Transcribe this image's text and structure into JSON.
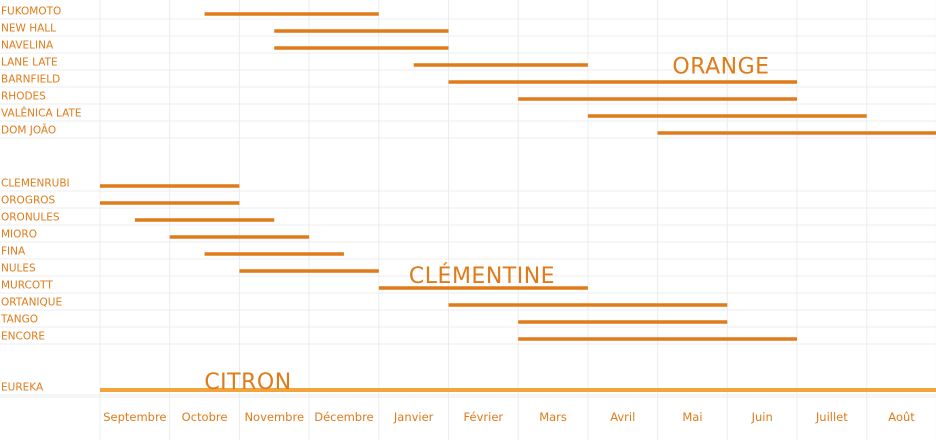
{
  "chart_data": {
    "type": "bar",
    "orientation": "horizontal-range",
    "months": [
      "Septembre",
      "Octobre",
      "Novembre",
      "Décembre",
      "Janvier",
      "Février",
      "Mars",
      "Avril",
      "Mai",
      "Juin",
      "Juillet",
      "Août"
    ],
    "colors": {
      "primary": "#e07b1a",
      "citron": "#f2a53a",
      "grid": "#ececec"
    },
    "groups": [
      {
        "label": "ORANGE",
        "color": "#e07b1a",
        "varieties": [
          {
            "name": "FUKOMOTO",
            "start": 1.5,
            "end": 4.0
          },
          {
            "name": "NEW HALL",
            "start": 2.5,
            "end": 5.0
          },
          {
            "name": "NAVELINA",
            "start": 2.5,
            "end": 5.0
          },
          {
            "name": "LANE LATE",
            "start": 4.5,
            "end": 7.0
          },
          {
            "name": "BARNFIELD",
            "start": 5.0,
            "end": 10.0
          },
          {
            "name": "RHODES",
            "start": 6.0,
            "end": 10.0
          },
          {
            "name": "VALÊNICA LATE",
            "start": 7.0,
            "end": 11.0
          },
          {
            "name": "DOM JOÃO",
            "start": 8.0,
            "end": 12.0
          }
        ]
      },
      {
        "label": "CLÉMENTINE",
        "color": "#e07b1a",
        "varieties": [
          {
            "name": "CLEMENRUBI",
            "start": 0.0,
            "end": 2.0
          },
          {
            "name": "OROGROS",
            "start": 0.0,
            "end": 2.0
          },
          {
            "name": "ORONULES",
            "start": 0.5,
            "end": 2.5
          },
          {
            "name": "MIORO",
            "start": 1.0,
            "end": 3.0
          },
          {
            "name": "FINA",
            "start": 1.5,
            "end": 3.5
          },
          {
            "name": "NULES",
            "start": 2.0,
            "end": 4.0
          },
          {
            "name": "MURCOTT",
            "start": 4.0,
            "end": 7.0
          },
          {
            "name": "ORTANIQUE",
            "start": 5.0,
            "end": 9.0
          },
          {
            "name": "TANGO",
            "start": 6.0,
            "end": 9.0
          },
          {
            "name": "ENCORE",
            "start": 6.0,
            "end": 10.0
          }
        ]
      },
      {
        "label": "CITRON",
        "color": "#f2a53a",
        "varieties": [
          {
            "name": "EUREKA",
            "start": 0.0,
            "end": 12.0
          }
        ]
      }
    ],
    "grid": true,
    "legend": "none"
  }
}
